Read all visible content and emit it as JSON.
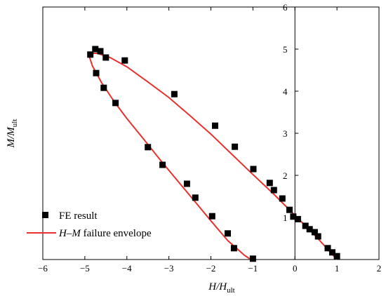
{
  "chart_data": {
    "type": "scatter",
    "xlabel": {
      "main": "H/H",
      "sub": "ult"
    },
    "ylabel": {
      "main": "M/M",
      "sub": "ult"
    },
    "xlim": [
      -6,
      2
    ],
    "ylim": [
      0,
      6
    ],
    "x_ticks": [
      "-6",
      "-5",
      "-4",
      "-3",
      "-2",
      "-1",
      "0",
      "1",
      "2"
    ],
    "y_ticks": [
      "1",
      "2",
      "3",
      "4",
      "5",
      "6"
    ],
    "legend": {
      "position": "lower-left",
      "fe_label": "FE result",
      "env_label": {
        "h": "H",
        "dash": "–",
        "m": "M",
        "rest": " failure envelope"
      }
    },
    "series": [
      {
        "name": "FE result",
        "kind": "scatter",
        "color": "#000000",
        "points": [
          [
            -4.87,
            4.87
          ],
          [
            -4.75,
            5.0
          ],
          [
            -4.63,
            4.95
          ],
          [
            -4.5,
            4.8
          ],
          [
            -4.05,
            4.73
          ],
          [
            -4.73,
            4.43
          ],
          [
            -4.55,
            4.08
          ],
          [
            -4.27,
            3.72
          ],
          [
            -2.87,
            3.93
          ],
          [
            -1.9,
            3.18
          ],
          [
            -1.43,
            2.68
          ],
          [
            -0.99,
            2.15
          ],
          [
            -0.6,
            1.82
          ],
          [
            -0.5,
            1.65
          ],
          [
            -0.3,
            1.45
          ],
          [
            -0.13,
            1.18
          ],
          [
            -0.04,
            1.02
          ],
          [
            0.07,
            0.96
          ],
          [
            0.25,
            0.8
          ],
          [
            0.35,
            0.72
          ],
          [
            0.47,
            0.65
          ],
          [
            0.55,
            0.55
          ],
          [
            0.78,
            0.27
          ],
          [
            0.89,
            0.17
          ],
          [
            1.0,
            0.08
          ],
          [
            -3.5,
            2.67
          ],
          [
            -3.15,
            2.25
          ],
          [
            -2.57,
            1.8
          ],
          [
            -2.37,
            1.47
          ],
          [
            -1.97,
            1.03
          ],
          [
            -1.6,
            0.62
          ],
          [
            -1.45,
            0.27
          ],
          [
            -1.0,
            0.02
          ]
        ]
      },
      {
        "name": "H–M failure envelope",
        "kind": "line",
        "color": "#e8322f",
        "points": [
          [
            1.0,
            0.0
          ],
          [
            0.5,
            0.55
          ],
          [
            0.0,
            1.05
          ],
          [
            -0.5,
            1.55
          ],
          [
            -1.0,
            2.02
          ],
          [
            -1.5,
            2.5
          ],
          [
            -2.0,
            2.98
          ],
          [
            -2.5,
            3.42
          ],
          [
            -3.0,
            3.85
          ],
          [
            -3.5,
            4.22
          ],
          [
            -4.0,
            4.58
          ],
          [
            -4.4,
            4.8
          ],
          [
            -4.7,
            4.9
          ],
          [
            -4.85,
            4.9
          ],
          [
            -4.9,
            4.84
          ],
          [
            -4.82,
            4.6
          ],
          [
            -4.6,
            4.2
          ],
          [
            -4.3,
            3.75
          ],
          [
            -4.0,
            3.35
          ],
          [
            -3.6,
            2.86
          ],
          [
            -3.2,
            2.36
          ],
          [
            -2.8,
            1.88
          ],
          [
            -2.4,
            1.4
          ],
          [
            -2.0,
            0.92
          ],
          [
            -1.6,
            0.45
          ],
          [
            -1.2,
            0.1
          ],
          [
            -1.05,
            0.0
          ]
        ]
      }
    ]
  }
}
